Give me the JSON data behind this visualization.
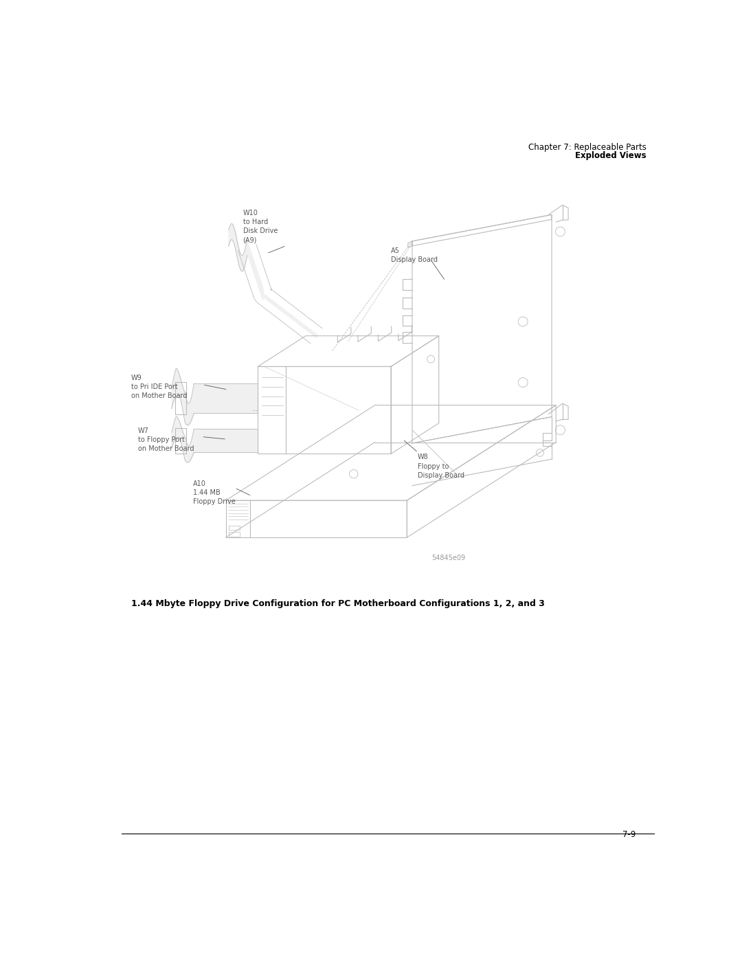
{
  "page_title_line1": "Chapter 7: Replaceable Parts",
  "page_title_line2": "Exploded Views",
  "figure_caption": "1.44 Mbyte Floppy Drive Configuration for PC Motherboard Configurations 1, 2, and 3",
  "page_number": "7-9",
  "watermark": "54845e09",
  "bg_color": "#ffffff",
  "line_color": "#bbbbbb",
  "label_color": "#555555",
  "label_fs": 7.0
}
